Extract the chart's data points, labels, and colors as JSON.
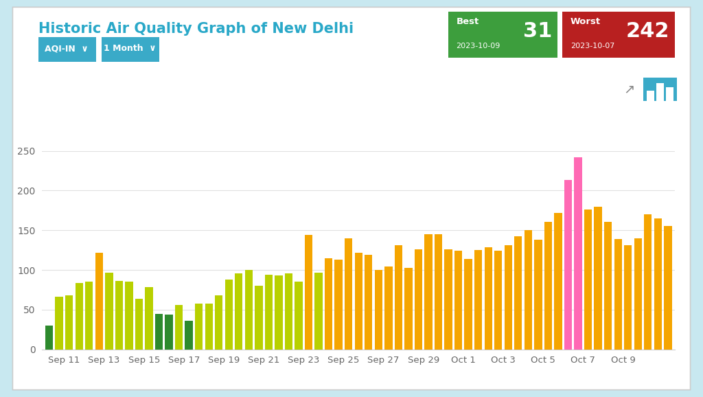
{
  "title": "Historic Air Quality Graph of New Delhi",
  "title_color": "#29a8c8",
  "background_color": "#c8e8f0",
  "card_color": "#ffffff",
  "best_label": "Best",
  "best_date": "2023-10-09",
  "best_value": "31",
  "worst_label": "Worst",
  "worst_date": "2023-10-07",
  "worst_value": "242",
  "best_color": "#3d9e3d",
  "worst_color": "#b82020",
  "button_color": "#3aaac8",
  "ylim": [
    0,
    250
  ],
  "yticks": [
    0,
    50,
    100,
    150,
    200,
    250
  ],
  "bar_data": [
    {
      "value": 30,
      "color": "#2d8a2d"
    },
    {
      "value": 66,
      "color": "#b8d000"
    },
    {
      "value": 68,
      "color": "#b8d000"
    },
    {
      "value": 84,
      "color": "#b8d000"
    },
    {
      "value": 85,
      "color": "#b8d000"
    },
    {
      "value": 122,
      "color": "#f5a500"
    },
    {
      "value": 97,
      "color": "#b8d000"
    },
    {
      "value": 86,
      "color": "#b8d000"
    },
    {
      "value": 85,
      "color": "#b8d000"
    },
    {
      "value": 64,
      "color": "#b8d000"
    },
    {
      "value": 78,
      "color": "#b8d000"
    },
    {
      "value": 45,
      "color": "#2d8a2d"
    },
    {
      "value": 44,
      "color": "#2d8a2d"
    },
    {
      "value": 56,
      "color": "#b8d000"
    },
    {
      "value": 36,
      "color": "#2d8a2d"
    },
    {
      "value": 58,
      "color": "#b8d000"
    },
    {
      "value": 58,
      "color": "#b8d000"
    },
    {
      "value": 68,
      "color": "#b8d000"
    },
    {
      "value": 88,
      "color": "#b8d000"
    },
    {
      "value": 96,
      "color": "#b8d000"
    },
    {
      "value": 100,
      "color": "#b8d000"
    },
    {
      "value": 80,
      "color": "#b8d000"
    },
    {
      "value": 94,
      "color": "#b8d000"
    },
    {
      "value": 93,
      "color": "#b8d000"
    },
    {
      "value": 96,
      "color": "#b8d000"
    },
    {
      "value": 85,
      "color": "#b8d000"
    },
    {
      "value": 144,
      "color": "#f5a500"
    },
    {
      "value": 97,
      "color": "#b8d000"
    },
    {
      "value": 115,
      "color": "#f5a500"
    },
    {
      "value": 113,
      "color": "#f5a500"
    },
    {
      "value": 140,
      "color": "#f5a500"
    },
    {
      "value": 122,
      "color": "#f5a500"
    },
    {
      "value": 119,
      "color": "#f5a500"
    },
    {
      "value": 100,
      "color": "#f5a500"
    },
    {
      "value": 104,
      "color": "#f5a500"
    },
    {
      "value": 131,
      "color": "#f5a500"
    },
    {
      "value": 103,
      "color": "#f5a500"
    },
    {
      "value": 126,
      "color": "#f5a500"
    },
    {
      "value": 145,
      "color": "#f5a500"
    },
    {
      "value": 145,
      "color": "#f5a500"
    },
    {
      "value": 126,
      "color": "#f5a500"
    },
    {
      "value": 124,
      "color": "#f5a500"
    },
    {
      "value": 114,
      "color": "#f5a500"
    },
    {
      "value": 125,
      "color": "#f5a500"
    },
    {
      "value": 129,
      "color": "#f5a500"
    },
    {
      "value": 124,
      "color": "#f5a500"
    },
    {
      "value": 131,
      "color": "#f5a500"
    },
    {
      "value": 142,
      "color": "#f5a500"
    },
    {
      "value": 150,
      "color": "#f5a500"
    },
    {
      "value": 138,
      "color": "#f5a500"
    },
    {
      "value": 161,
      "color": "#f5a500"
    },
    {
      "value": 172,
      "color": "#f5a500"
    },
    {
      "value": 213,
      "color": "#ff69b4"
    },
    {
      "value": 242,
      "color": "#ff69b4"
    },
    {
      "value": 176,
      "color": "#f5a500"
    },
    {
      "value": 180,
      "color": "#f5a500"
    },
    {
      "value": 161,
      "color": "#f5a500"
    },
    {
      "value": 139,
      "color": "#f5a500"
    },
    {
      "value": 131,
      "color": "#f5a500"
    },
    {
      "value": 140,
      "color": "#f5a500"
    },
    {
      "value": 170,
      "color": "#f5a500"
    },
    {
      "value": 165,
      "color": "#f5a500"
    },
    {
      "value": 155,
      "color": "#f5a500"
    }
  ],
  "xtick_labels": [
    "Sep 11",
    "Sep 13",
    "Sep 15",
    "Sep 17",
    "Sep 19",
    "Sep 21",
    "Sep 23",
    "Sep 25",
    "Sep 27",
    "Sep 29",
    "Oct 1",
    "Oct 3",
    "Oct 5",
    "Oct 7",
    "Oct 9"
  ]
}
